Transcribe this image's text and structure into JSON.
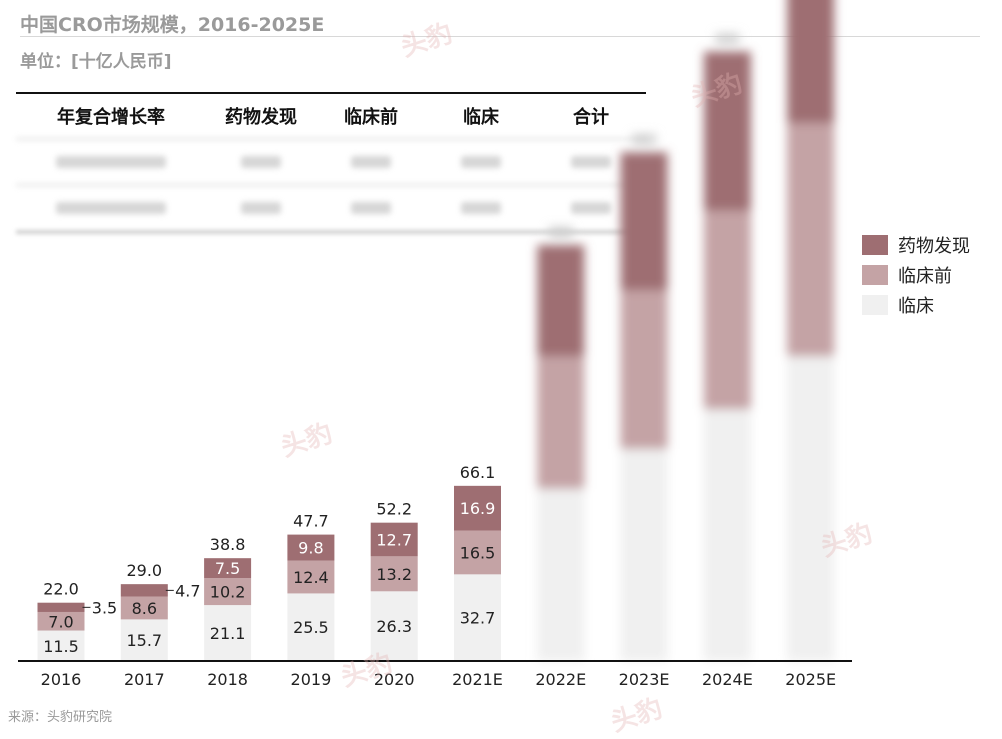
{
  "title": "中国CRO市场规模，2016-2025E",
  "unit": "单位：[十亿人民币]",
  "source": "来源：头豹研究院",
  "watermark": "头豹",
  "colors": {
    "drug_discovery": "#9e6e72",
    "preclinical": "#c4a3a5",
    "clinical": "#f0f0f0",
    "axis": "#111111"
  },
  "cagr_table": {
    "headers": [
      "年复合增长率",
      "药物发现",
      "临床前",
      "临床",
      "合计"
    ]
  },
  "legend": [
    {
      "label": "药物发现",
      "color_key": "drug_discovery"
    },
    {
      "label": "临床前",
      "color_key": "preclinical"
    },
    {
      "label": "临床",
      "color_key": "clinical"
    }
  ],
  "chart_data": {
    "type": "bar",
    "stacked": true,
    "categories": [
      "2016",
      "2017",
      "2018",
      "2019",
      "2020",
      "2021E",
      "2022E",
      "2023E",
      "2024E",
      "2025E"
    ],
    "series": [
      {
        "name": "临床",
        "color_key": "clinical",
        "values": [
          11.5,
          15.7,
          21.1,
          25.5,
          26.3,
          32.7,
          null,
          null,
          null,
          null
        ]
      },
      {
        "name": "临床前",
        "color_key": "preclinical",
        "values": [
          7.0,
          8.6,
          10.2,
          12.4,
          13.2,
          16.5,
          null,
          null,
          null,
          null
        ]
      },
      {
        "name": "药物发现",
        "color_key": "drug_discovery",
        "values": [
          3.5,
          4.7,
          7.5,
          9.8,
          12.7,
          16.9,
          null,
          null,
          null,
          null
        ]
      }
    ],
    "totals": [
      22.0,
      29.0,
      38.8,
      47.7,
      52.2,
      66.1,
      null,
      null,
      null,
      null
    ],
    "hidden_categories": [
      "2022E",
      "2023E",
      "2024E",
      "2025E"
    ],
    "ylim": [
      0,
      160
    ],
    "grid": false,
    "legend_position": "right"
  }
}
